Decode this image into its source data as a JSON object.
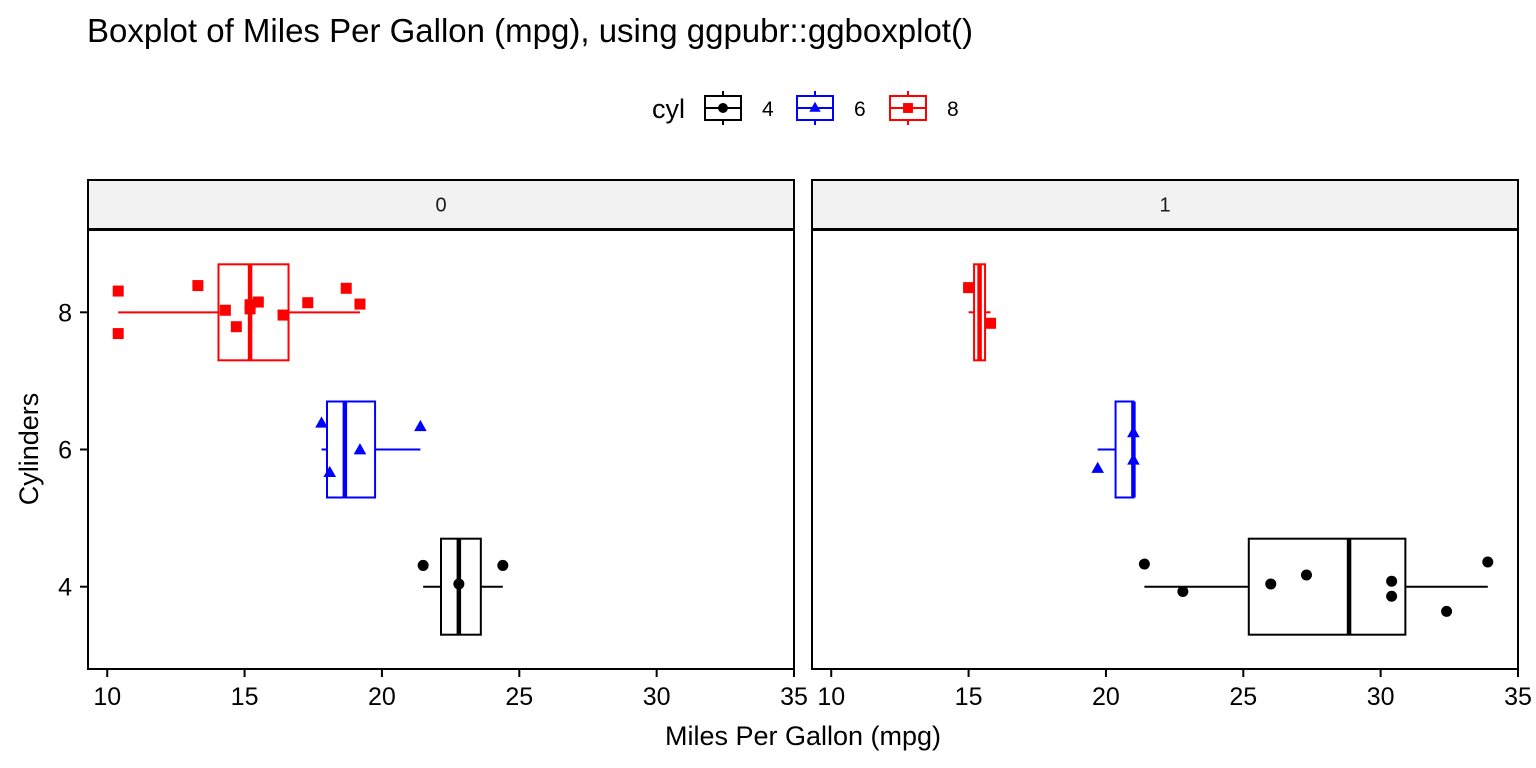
{
  "chart_data": {
    "type": "boxplot",
    "title": "Boxplot of Miles Per Gallon (mpg), using ggpubr::ggboxplot()",
    "xlabel": "Miles Per Gallon (mpg)",
    "ylabel": "Cylinders",
    "xlim": [
      9.3,
      35
    ],
    "ylim": [
      2.8,
      9.2
    ],
    "x_ticks": [
      10,
      15,
      20,
      25,
      30,
      35
    ],
    "y_ticks": [
      4,
      6,
      8
    ],
    "grid": false,
    "legend": {
      "title": "cyl",
      "position": "top",
      "entries": [
        {
          "label": "4",
          "color": "#000000",
          "shape": "circle"
        },
        {
          "label": "6",
          "color": "#0000ff",
          "shape": "triangle"
        },
        {
          "label": "8",
          "color": "#ff0000",
          "shape": "square"
        }
      ]
    },
    "facets": [
      {
        "label": "0",
        "series": [
          {
            "cyl": "4",
            "color": "#000000",
            "shape": "circle",
            "box": {
              "whisker_low": 21.5,
              "q1": 22.15,
              "median": 22.8,
              "q3": 23.6,
              "whisker_high": 24.4
            },
            "points": [
              [
                21.5,
                4.31
              ],
              [
                22.8,
                4.04
              ],
              [
                24.4,
                4.31
              ]
            ]
          },
          {
            "cyl": "6",
            "color": "#0000ff",
            "shape": "triangle",
            "box": {
              "whisker_low": 17.8,
              "q1": 18.0,
              "median": 18.65,
              "q3": 19.75,
              "whisker_high": 21.4
            },
            "points": [
              [
                17.8,
                6.38
              ],
              [
                18.1,
                5.66
              ],
              [
                19.2,
                5.99
              ],
              [
                21.4,
                6.33
              ]
            ]
          },
          {
            "cyl": "8",
            "color": "#ff0000",
            "shape": "square",
            "box": {
              "whisker_low": 10.4,
              "q1": 14.05,
              "median": 15.2,
              "q3": 16.6,
              "whisker_high": 19.2
            },
            "points": [
              [
                10.4,
                8.31
              ],
              [
                10.4,
                7.69
              ],
              [
                13.3,
                8.39
              ],
              [
                14.3,
                8.03
              ],
              [
                14.7,
                7.79
              ],
              [
                15.2,
                8.05
              ],
              [
                15.2,
                8.11
              ],
              [
                15.5,
                8.15
              ],
              [
                16.4,
                7.96
              ],
              [
                17.3,
                8.14
              ],
              [
                18.7,
                8.35
              ],
              [
                19.2,
                8.12
              ]
            ]
          }
        ]
      },
      {
        "label": "1",
        "series": [
          {
            "cyl": "4",
            "color": "#000000",
            "shape": "circle",
            "box": {
              "whisker_low": 21.4,
              "q1": 25.2,
              "median": 28.85,
              "q3": 30.9,
              "whisker_high": 33.9
            },
            "points": [
              [
                21.4,
                4.33
              ],
              [
                22.8,
                3.93
              ],
              [
                26.0,
                4.04
              ],
              [
                27.3,
                4.17
              ],
              [
                30.4,
                4.08
              ],
              [
                30.4,
                3.86
              ],
              [
                32.4,
                3.64
              ],
              [
                33.9,
                4.36
              ]
            ]
          },
          {
            "cyl": "6",
            "color": "#0000ff",
            "shape": "triangle",
            "box": {
              "whisker_low": 19.7,
              "q1": 20.35,
              "median": 21.0,
              "q3": 21.0,
              "whisker_high": 21.0
            },
            "points": [
              [
                19.7,
                5.72
              ],
              [
                21.0,
                6.24
              ],
              [
                21.0,
                5.84
              ]
            ]
          },
          {
            "cyl": "8",
            "color": "#ff0000",
            "shape": "square",
            "box": {
              "whisker_low": 15.0,
              "q1": 15.2,
              "median": 15.4,
              "q3": 15.6,
              "whisker_high": 15.8
            },
            "points": [
              [
                15.0,
                8.36
              ],
              [
                15.8,
                7.84
              ]
            ]
          }
        ]
      }
    ]
  }
}
